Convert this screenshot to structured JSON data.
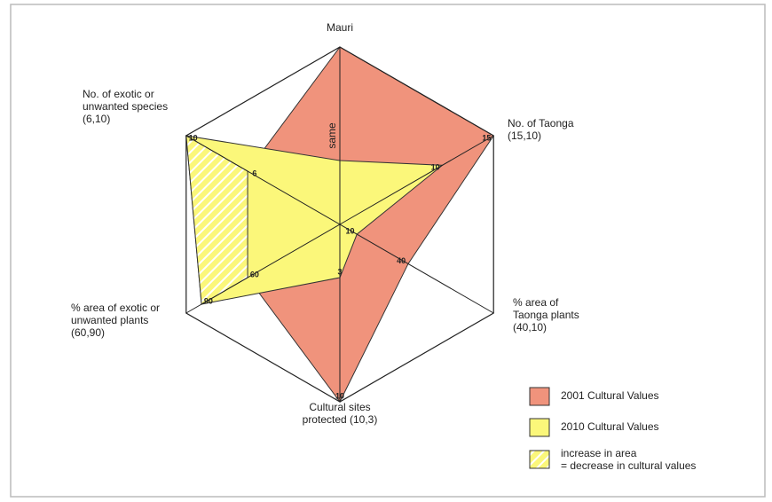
{
  "chart_data": {
    "type": "radar",
    "axes": [
      {
        "label": [
          "Mauri"
        ],
        "max": 1
      },
      {
        "label": [
          "No. of Taonga",
          "(15,10)"
        ],
        "max": 15
      },
      {
        "label": [
          "% area of",
          "Taonga plants",
          "(40,10)"
        ],
        "max": 90
      },
      {
        "label": [
          "Cultural sites",
          "protected (10,3)"
        ],
        "max": 10
      },
      {
        "label": [
          "% area of exotic or",
          "unwanted plants",
          "(60,90)"
        ],
        "max": 100
      },
      {
        "label": [
          "No. of exotic or",
          "unwanted species",
          "(6,10)"
        ],
        "max": 10
      }
    ],
    "series": [
      {
        "name": "2001 Cultural Values",
        "color": "#f0937c",
        "values": [
          1,
          15,
          40,
          10,
          60,
          6
        ]
      },
      {
        "name": "2010 Cultural Values",
        "color": "#fbf77a",
        "values": [
          0.36,
          10,
          10,
          3,
          90,
          10
        ]
      }
    ],
    "hatch_legend": [
      "increase in area",
      "= decrease in cultural values"
    ],
    "annotation": "same"
  }
}
